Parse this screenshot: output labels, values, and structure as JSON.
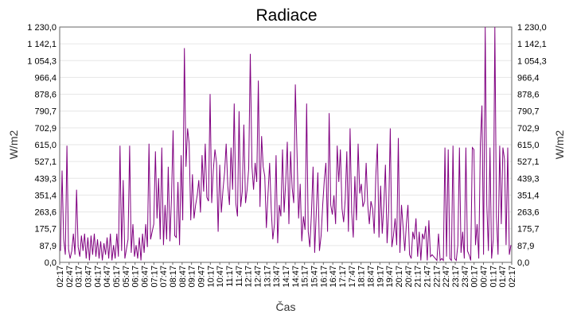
{
  "chart_data": {
    "type": "line",
    "title": "Radiace",
    "xlabel": "Čas",
    "ylabel": "W/m2",
    "ylabel_right": "W/m2",
    "ylim": [
      0,
      1230
    ],
    "yticks": [
      "0,0",
      "87,9",
      "175,7",
      "263,6",
      "351,4",
      "439,3",
      "527,1",
      "615,0",
      "702,9",
      "790,7",
      "878,6",
      "966,4",
      "1 054,3",
      "1 142,1",
      "1 230,0"
    ],
    "x_ticks": [
      "02:17",
      "02:47",
      "03:17",
      "03:47",
      "04:17",
      "04:47",
      "05:17",
      "05:47",
      "06:17",
      "06:47",
      "07:17",
      "07:47",
      "08:17",
      "08:47",
      "09:17",
      "09:47",
      "10:17",
      "10:47",
      "11:17",
      "11:47",
      "12:17",
      "12:47",
      "13:17",
      "13:47",
      "14:17",
      "14:47",
      "15:17",
      "15:47",
      "16:17",
      "16:47",
      "17:17",
      "17:47",
      "18:17",
      "18:47",
      "19:17",
      "19:47",
      "20:17",
      "20:47",
      "21:17",
      "21:47",
      "22:17",
      "22:47",
      "23:17",
      "23:47",
      "00:17",
      "00:47",
      "01:17",
      "01:47",
      "02:17"
    ],
    "grid": true,
    "line_color": "#800080",
    "series": [
      {
        "values": [
          60,
          480,
          120,
          40,
          610,
          70,
          20,
          60,
          150,
          40,
          380,
          80,
          30,
          140,
          60,
          150,
          20,
          130,
          10,
          140,
          40,
          150,
          30,
          120,
          20,
          110,
          10,
          100,
          40,
          130,
          20,
          150,
          10,
          90,
          20,
          150,
          30,
          610,
          60,
          430,
          20,
          70,
          120,
          610,
          50,
          200,
          30,
          90,
          20,
          130,
          10,
          150,
          50,
          200,
          80,
          620,
          120,
          160,
          200,
          580,
          230,
          440,
          120,
          600,
          90,
          300,
          120,
          500,
          110,
          340,
          690,
          140,
          130,
          420,
          90,
          560,
          220,
          1120,
          500,
          700,
          620,
          220,
          460,
          230,
          300,
          350,
          430,
          260,
          560,
          370,
          620,
          340,
          320,
          880,
          310,
          480,
          590,
          520,
          160,
          510,
          260,
          380,
          470,
          620,
          400,
          300,
          600,
          380,
          830,
          310,
          240,
          790,
          290,
          370,
          720,
          310,
          380,
          490,
          1090,
          500,
          380,
          520,
          420,
          950,
          290,
          660,
          500,
          450,
          180,
          360,
          520,
          280,
          120,
          200,
          560,
          100,
          300,
          240,
          590,
          260,
          420,
          630,
          200,
          580,
          390,
          310,
          930,
          590,
          230,
          410,
          110,
          240,
          170,
          830,
          160,
          80,
          250,
          500,
          50,
          260,
          470,
          60,
          140,
          300,
          430,
          520,
          160,
          780,
          300,
          250,
          350,
          200,
          610,
          420,
          590,
          280,
          210,
          330,
          580,
          160,
          700,
          260,
          130,
          450,
          220,
          620,
          360,
          410,
          290,
          320,
          520,
          300,
          200,
          320,
          280,
          150,
          450,
          620,
          130,
          400,
          150,
          300,
          510,
          100,
          270,
          700,
          80,
          140,
          230,
          90,
          650,
          50,
          300,
          180,
          60,
          200,
          300,
          40,
          20,
          160,
          120,
          230,
          30,
          160,
          10,
          150,
          120,
          190,
          10,
          220,
          30,
          40,
          30,
          20,
          10,
          150,
          10,
          20,
          10,
          600,
          30,
          590,
          20,
          10,
          610,
          20,
          10,
          90,
          600,
          50,
          160,
          20,
          600,
          60,
          40,
          10,
          600,
          590,
          90,
          200,
          20,
          620,
          820,
          40,
          1230,
          300,
          60,
          600,
          20,
          120,
          1230,
          240,
          40,
          610,
          200,
          600,
          540,
          90,
          600,
          40,
          90
        ]
      }
    ]
  }
}
